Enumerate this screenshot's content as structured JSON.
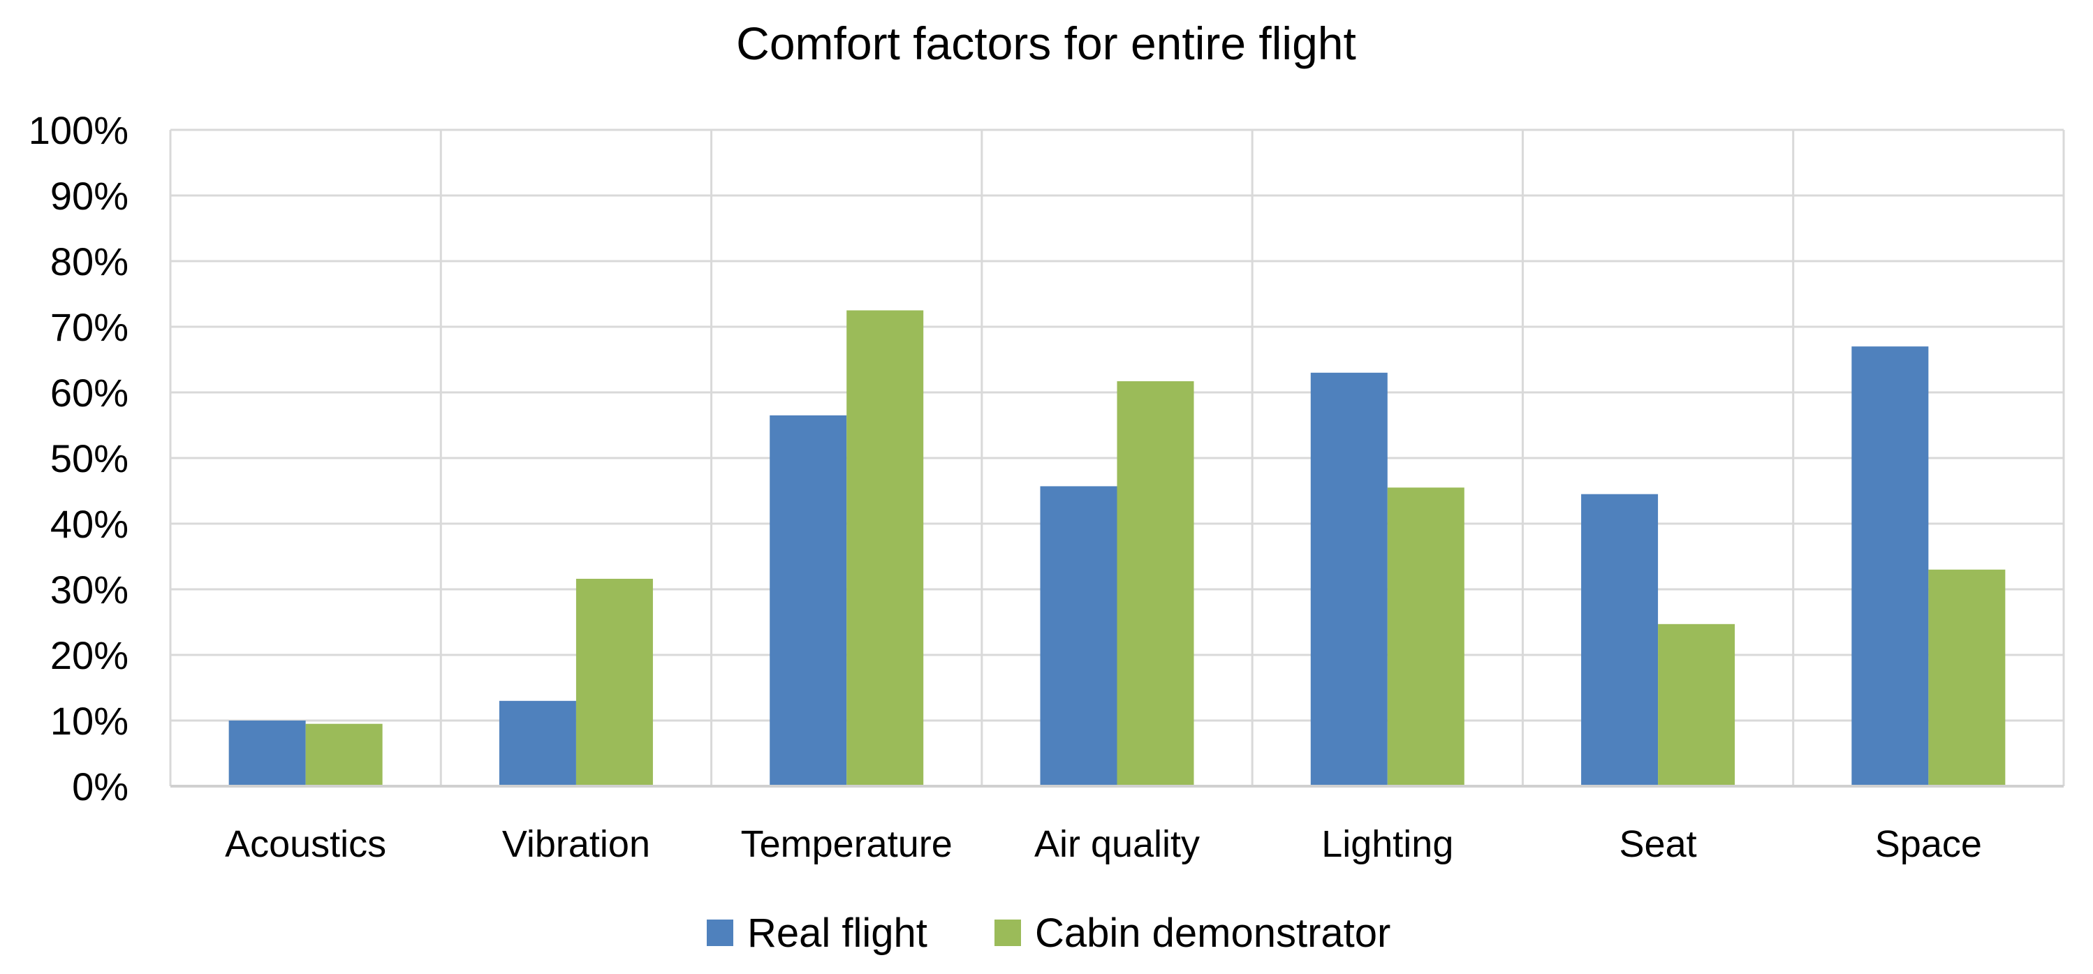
{
  "chart_data": {
    "type": "bar",
    "title": "Comfort factors for entire flight",
    "xlabel": "",
    "ylabel": "",
    "ylim": [
      0,
      1
    ],
    "y_ticks": [
      0,
      0.1,
      0.2,
      0.3,
      0.4,
      0.5,
      0.6,
      0.7,
      0.8,
      0.9,
      1.0
    ],
    "y_tick_labels": [
      "0%",
      "10%",
      "20%",
      "30%",
      "40%",
      "50%",
      "60%",
      "70%",
      "80%",
      "90%",
      "100%"
    ],
    "categories": [
      "Acoustics",
      "Vibration",
      "Temperature",
      "Air quality",
      "Lighting",
      "Seat",
      "Space"
    ],
    "series": [
      {
        "name": "Real flight",
        "color": "#4f81bd",
        "values": [
          0.1,
          0.13,
          0.565,
          0.457,
          0.63,
          0.445,
          0.67
        ]
      },
      {
        "name": "Cabin demonstrator",
        "color": "#9bbb59",
        "values": [
          0.095,
          0.316,
          0.725,
          0.617,
          0.455,
          0.247,
          0.33
        ]
      }
    ],
    "grid": true,
    "grid_color": "#d9d9d9",
    "legend_position": "bottom"
  }
}
